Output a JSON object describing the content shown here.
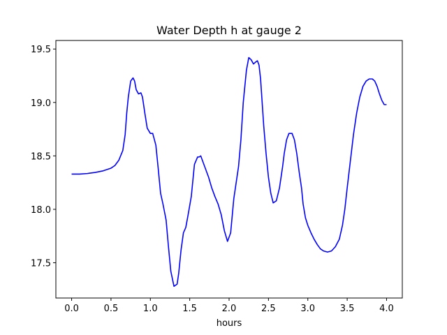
{
  "chart_data": {
    "type": "line",
    "title": "Water Depth h at gauge 2",
    "xlabel": "hours",
    "ylabel": "",
    "xlim": [
      -0.2,
      4.2
    ],
    "ylim": [
      17.17,
      19.58
    ],
    "xticks": [
      0.0,
      0.5,
      1.0,
      1.5,
      2.0,
      2.5,
      3.0,
      3.5,
      4.0
    ],
    "yticks": [
      17.5,
      18.0,
      18.5,
      19.0,
      19.5
    ],
    "xtick_labels": [
      "0.0",
      "0.5",
      "1.0",
      "1.5",
      "2.0",
      "2.5",
      "3.0",
      "3.5",
      "4.0"
    ],
    "ytick_labels": [
      "17.5",
      "18.0",
      "18.5",
      "19.0",
      "19.5"
    ],
    "grid": false,
    "color": "#0000ff",
    "series": [
      {
        "x": [
          0.0,
          0.1,
          0.2,
          0.3,
          0.4,
          0.5,
          0.55,
          0.6,
          0.65,
          0.68,
          0.7,
          0.72,
          0.75,
          0.78,
          0.8,
          0.82,
          0.85,
          0.88,
          0.9,
          0.93,
          0.96,
          1.0,
          1.03,
          1.07,
          1.1,
          1.13,
          1.16,
          1.2,
          1.23,
          1.26,
          1.3,
          1.34,
          1.36,
          1.39,
          1.42,
          1.45,
          1.48,
          1.52,
          1.56,
          1.6,
          1.62,
          1.64,
          1.66,
          1.68,
          1.7,
          1.74,
          1.78,
          1.82,
          1.86,
          1.9,
          1.94,
          1.98,
          2.02,
          2.06,
          2.09,
          2.12,
          2.15,
          2.18,
          2.22,
          2.25,
          2.28,
          2.31,
          2.34,
          2.36,
          2.38,
          2.4,
          2.42,
          2.44,
          2.47,
          2.5,
          2.53,
          2.56,
          2.6,
          2.64,
          2.68,
          2.7,
          2.73,
          2.76,
          2.8,
          2.83,
          2.86,
          2.89,
          2.92,
          2.94,
          2.97,
          3.0,
          3.04,
          3.08,
          3.12,
          3.16,
          3.2,
          3.25,
          3.3,
          3.35,
          3.4,
          3.44,
          3.47,
          3.5,
          3.54,
          3.58,
          3.62,
          3.66,
          3.7,
          3.74,
          3.78,
          3.82,
          3.85,
          3.88,
          3.91,
          3.94,
          3.97,
          4.0
        ],
        "y": [
          18.33,
          18.33,
          18.335,
          18.345,
          18.36,
          18.385,
          18.41,
          18.46,
          18.55,
          18.7,
          18.9,
          19.05,
          19.2,
          19.23,
          19.2,
          19.12,
          19.08,
          19.09,
          19.05,
          18.9,
          18.76,
          18.71,
          18.71,
          18.6,
          18.38,
          18.15,
          18.05,
          17.9,
          17.65,
          17.42,
          17.28,
          17.3,
          17.4,
          17.62,
          17.78,
          17.83,
          17.95,
          18.12,
          18.42,
          18.49,
          18.49,
          18.5,
          18.46,
          18.42,
          18.38,
          18.3,
          18.2,
          18.12,
          18.05,
          17.95,
          17.8,
          17.7,
          17.78,
          18.1,
          18.25,
          18.4,
          18.65,
          19.0,
          19.3,
          19.42,
          19.4,
          19.36,
          19.38,
          19.39,
          19.35,
          19.22,
          19.0,
          18.78,
          18.52,
          18.3,
          18.15,
          18.06,
          18.08,
          18.2,
          18.4,
          18.52,
          18.65,
          18.71,
          18.71,
          18.65,
          18.52,
          18.35,
          18.2,
          18.05,
          17.92,
          17.85,
          17.78,
          17.72,
          17.67,
          17.63,
          17.61,
          17.6,
          17.61,
          17.65,
          17.72,
          17.85,
          18.0,
          18.2,
          18.45,
          18.7,
          18.9,
          19.05,
          19.15,
          19.2,
          19.22,
          19.22,
          19.2,
          19.15,
          19.08,
          19.02,
          18.98,
          18.98
        ]
      }
    ]
  }
}
